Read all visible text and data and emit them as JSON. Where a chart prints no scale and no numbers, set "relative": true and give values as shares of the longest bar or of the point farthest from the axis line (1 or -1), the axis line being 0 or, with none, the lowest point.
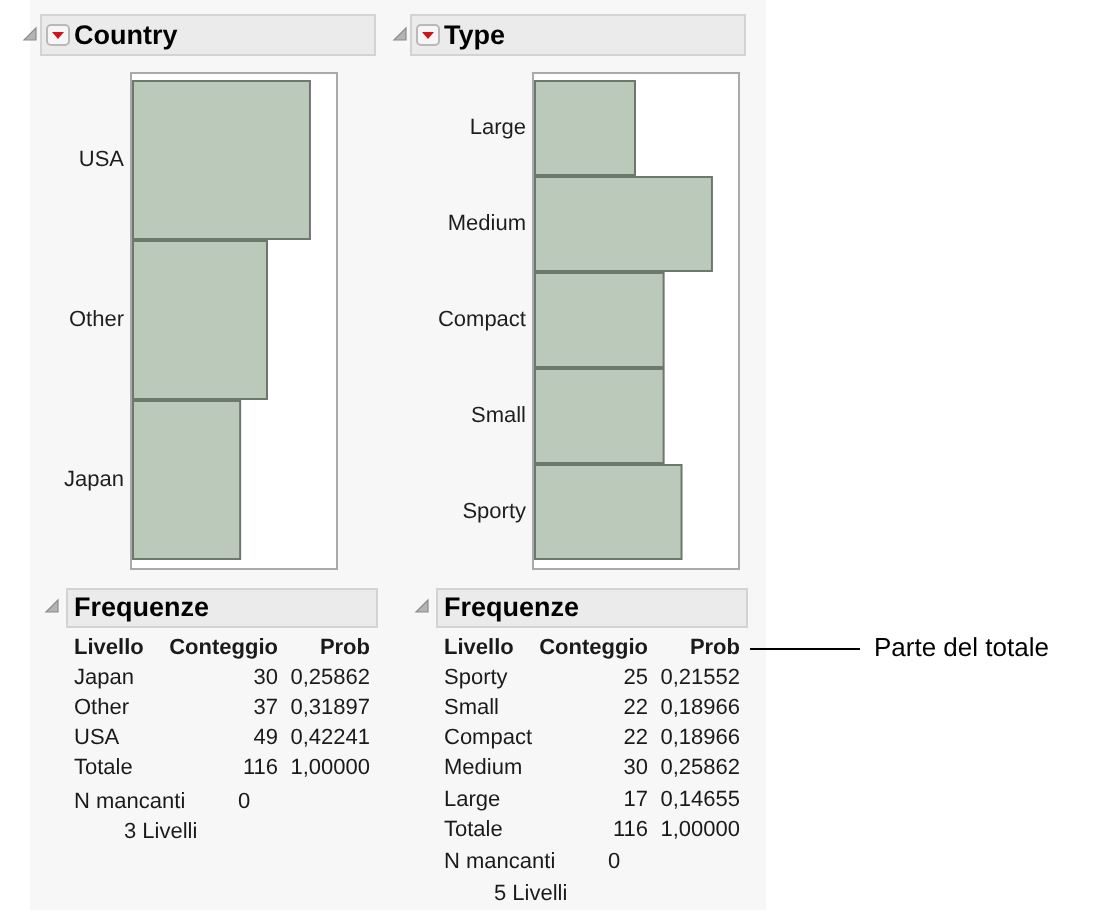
{
  "chart_data": [
    {
      "type": "bar",
      "orientation": "horizontal",
      "relative": true,
      "title": "Country",
      "categories": [
        "USA",
        "Other",
        "Japan"
      ],
      "values": [
        1,
        0.76,
        0.61
      ],
      "color": "#bac9ba"
    },
    {
      "type": "bar",
      "orientation": "horizontal",
      "relative": true,
      "title": "Type",
      "categories": [
        "Large",
        "Medium",
        "Compact",
        "Small",
        "Sporty"
      ],
      "values": [
        0.57,
        1,
        0.73,
        0.73,
        0.83
      ],
      "color": "#bac9ba"
    },
    {
      "type": "other",
      "title": "Frequenze",
      "ylabel": "Livello",
      "data_labels": true,
      "categories": [
        "Japan",
        "Other",
        "USA",
        "Totale"
      ],
      "series": [
        {
          "name": "Conteggio",
          "values": [
            30,
            37,
            49,
            116
          ]
        },
        {
          "name": "Prob",
          "values": [
            0.25862,
            0.31897,
            0.42241,
            null
          ],
          "value_labels": [
            "0,25862",
            "0,31897",
            "0,42241",
            "1,00000"
          ]
        }
      ],
      "annotations": [
        "N mancanti",
        "0",
        "3 Livelli"
      ]
    },
    {
      "type": "other",
      "title": "Frequenze",
      "ylabel": "Livello",
      "data_labels": true,
      "categories": [
        "Sporty",
        "Small",
        "Compact",
        "Medium",
        "Large",
        "Totale"
      ],
      "series": [
        {
          "name": "Conteggio",
          "values": [
            25,
            22,
            22,
            30,
            17,
            116
          ]
        },
        {
          "name": "Prob",
          "values": [
            0.21552,
            0.18966,
            0.18966,
            0.25862,
            0.14655,
            null
          ],
          "value_labels": [
            "0,21552",
            "0,18966",
            "0,18966",
            "0,25862",
            "0,14655",
            "1,00000"
          ]
        }
      ],
      "annotations": [
        "N mancanti",
        "0",
        "5 Livelli",
        "Parte del totale"
      ]
    }
  ]
}
